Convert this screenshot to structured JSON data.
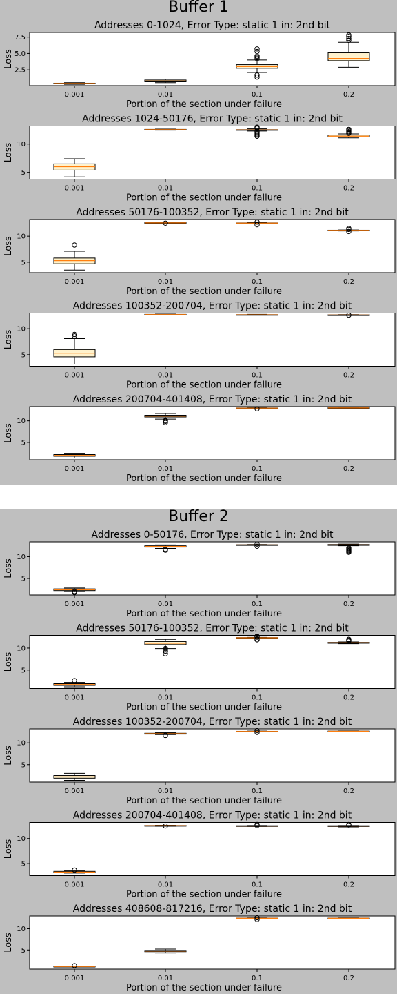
{
  "panels": [
    {
      "title": "Buffer 1",
      "charts": [
        {
          "type": "boxplot",
          "title": "Addresses 0-1024, Error Type: static 1 in: 2nd bit",
          "xlabel": "Portion of the section under failure",
          "ylabel": "Loss",
          "categories": [
            "0.001",
            "0.01",
            "0.1",
            "0.2"
          ],
          "ylim": [
            0.1,
            8.2
          ],
          "yticks": [
            2.5,
            5.0,
            7.5
          ],
          "ytick_labels": [
            "2.5",
            "5.0",
            "7.5"
          ],
          "boxes": [
            {
              "whislo": 0.3,
              "q1": 0.38,
              "med": 0.42,
              "q3": 0.47,
              "whishi": 0.55,
              "fliers": []
            },
            {
              "whislo": 0.55,
              "q1": 0.68,
              "med": 0.8,
              "q3": 0.95,
              "whishi": 1.1,
              "fliers": []
            },
            {
              "whislo": 2.1,
              "q1": 2.75,
              "med": 3.0,
              "q3": 3.3,
              "whishi": 4.0,
              "fliers": [
                1.4,
                1.7,
                4.2,
                4.4,
                4.6,
                5.3,
                5.7
              ]
            },
            {
              "whislo": 2.9,
              "q1": 3.9,
              "med": 4.25,
              "q3": 5.1,
              "whishi": 6.7,
              "fliers": [
                7.0,
                7.3,
                7.6,
                7.8
              ]
            }
          ]
        },
        {
          "type": "boxplot",
          "title": "Addresses 1024-50176, Error Type: static 1 in: 2nd bit",
          "xlabel": "Portion of the section under failure",
          "ylabel": "Loss",
          "categories": [
            "0.001",
            "0.01",
            "0.1",
            "0.2"
          ],
          "ylim": [
            3.8,
            13.2
          ],
          "yticks": [
            5,
            10
          ],
          "ytick_labels": [
            "5",
            "10"
          ],
          "boxes": [
            {
              "whislo": 4.2,
              "q1": 5.4,
              "med": 6.0,
              "q3": 6.5,
              "whishi": 7.4,
              "fliers": []
            },
            {
              "whislo": 12.45,
              "q1": 12.5,
              "med": 12.55,
              "q3": 12.6,
              "whishi": 12.65,
              "fliers": []
            },
            {
              "whislo": 12.3,
              "q1": 12.45,
              "med": 12.5,
              "q3": 12.55,
              "whishi": 12.7,
              "fliers": [
                11.4,
                11.6,
                11.8,
                12.0,
                12.2,
                12.8,
                12.9,
                13.0
              ]
            },
            {
              "whislo": 11.1,
              "q1": 11.25,
              "med": 11.4,
              "q3": 11.6,
              "whishi": 11.8,
              "fliers": [
                11.9,
                12.0,
                12.2,
                12.4,
                12.6
              ]
            }
          ]
        },
        {
          "type": "boxplot",
          "title": "Addresses 50176-100352, Error Type: static 1 in: 2nd bit",
          "xlabel": "Portion of the section under failure",
          "ylabel": "Loss",
          "categories": [
            "0.001",
            "0.01",
            "0.1",
            "0.2"
          ],
          "ylim": [
            3.0,
            13.2
          ],
          "yticks": [
            5,
            10
          ],
          "ytick_labels": [
            "5",
            "10"
          ],
          "boxes": [
            {
              "whislo": 3.5,
              "q1": 4.7,
              "med": 5.3,
              "q3": 5.8,
              "whishi": 7.1,
              "fliers": [
                8.3
              ]
            },
            {
              "whislo": 12.45,
              "q1": 12.5,
              "med": 12.55,
              "q3": 12.6,
              "whishi": 12.65,
              "fliers": [
                12.5
              ]
            },
            {
              "whislo": 12.4,
              "q1": 12.45,
              "med": 12.5,
              "q3": 12.55,
              "whishi": 12.6,
              "fliers": [
                12.2,
                12.7
              ]
            },
            {
              "whislo": 11.0,
              "q1": 11.05,
              "med": 11.1,
              "q3": 11.15,
              "whishi": 11.2,
              "fliers": [
                10.9,
                11.3,
                11.5
              ]
            }
          ]
        },
        {
          "type": "boxplot",
          "title": "Addresses 100352-200704, Error Type: static 1 in: 2nd bit",
          "xlabel": "Portion of the section under failure",
          "ylabel": "Loss",
          "categories": [
            "0.001",
            "0.01",
            "0.1",
            "0.2"
          ],
          "ylim": [
            2.8,
            13.0
          ],
          "yticks": [
            5,
            10
          ],
          "ytick_labels": [
            "5",
            "10"
          ],
          "boxes": [
            {
              "whislo": 3.2,
              "q1": 4.6,
              "med": 5.3,
              "q3": 6.0,
              "whishi": 8.1,
              "fliers": [
                8.6,
                8.9
              ]
            },
            {
              "whislo": 12.6,
              "q1": 12.65,
              "med": 12.7,
              "q3": 12.75,
              "whishi": 12.8,
              "fliers": []
            },
            {
              "whislo": 12.6,
              "q1": 12.63,
              "med": 12.66,
              "q3": 12.7,
              "whishi": 12.75,
              "fliers": []
            },
            {
              "whislo": 12.55,
              "q1": 12.6,
              "med": 12.63,
              "q3": 12.66,
              "whishi": 12.7,
              "fliers": [
                12.6
              ]
            }
          ]
        },
        {
          "type": "boxplot",
          "title": "Addresses 200704-401408, Error Type: static 1 in: 2nd bit",
          "xlabel": "Portion of the section under failure",
          "ylabel": "Loss",
          "categories": [
            "0.001",
            "0.01",
            "0.1",
            "0.2"
          ],
          "ylim": [
            1.0,
            13.3
          ],
          "yticks": [
            5,
            10
          ],
          "ytick_labels": [
            "5",
            "10"
          ],
          "boxes": [
            {
              "whislo": 1.4,
              "q1": 1.8,
              "med": 2.0,
              "q3": 2.2,
              "whishi": 2.5,
              "fliers": []
            },
            {
              "whislo": 10.4,
              "q1": 10.9,
              "med": 11.1,
              "q3": 11.3,
              "whishi": 11.7,
              "fliers": [
                9.6,
                9.9,
                10.1
              ]
            },
            {
              "whislo": 12.85,
              "q1": 12.9,
              "med": 12.95,
              "q3": 13.0,
              "whishi": 13.05,
              "fliers": [
                12.8
              ]
            },
            {
              "whislo": 12.9,
              "q1": 12.95,
              "med": 13.0,
              "q3": 13.05,
              "whishi": 13.1,
              "fliers": []
            }
          ]
        }
      ]
    },
    {
      "title": "Buffer 2",
      "charts": [
        {
          "type": "boxplot",
          "title": "Addresses 0-50176, Error Type: static 1 in: 2nd bit",
          "xlabel": "Portion of the section under failure",
          "ylabel": "Loss",
          "categories": [
            "0.001",
            "0.01",
            "0.1",
            "0.2"
          ],
          "ylim": [
            1.2,
            13.4
          ],
          "yticks": [
            5,
            10
          ],
          "ytick_labels": [
            "5",
            "10"
          ],
          "boxes": [
            {
              "whislo": 2.0,
              "q1": 2.2,
              "med": 2.4,
              "q3": 2.6,
              "whishi": 2.8,
              "fliers": [
                1.8,
                2.0
              ]
            },
            {
              "whislo": 11.9,
              "q1": 12.2,
              "med": 12.35,
              "q3": 12.5,
              "whishi": 12.7,
              "fliers": [
                11.5,
                11.7
              ]
            },
            {
              "whislo": 12.6,
              "q1": 12.65,
              "med": 12.7,
              "q3": 12.75,
              "whishi": 12.8,
              "fliers": [
                12.4,
                12.9
              ]
            },
            {
              "whislo": 12.5,
              "q1": 12.6,
              "med": 12.7,
              "q3": 12.8,
              "whishi": 12.9,
              "fliers": [
                11.0,
                11.2,
                11.4,
                11.6,
                11.8,
                12.0
              ]
            }
          ]
        },
        {
          "type": "boxplot",
          "title": "Addresses 50176-100352, Error Type: static 1 in: 2nd bit",
          "xlabel": "Portion of the section under failure",
          "ylabel": "Loss",
          "categories": [
            "0.001",
            "0.01",
            "0.1",
            "0.2"
          ],
          "ylim": [
            0.8,
            12.9
          ],
          "yticks": [
            5,
            10
          ],
          "ytick_labels": [
            "5",
            "10"
          ],
          "boxes": [
            {
              "whislo": 1.2,
              "q1": 1.5,
              "med": 1.7,
              "q3": 1.9,
              "whishi": 2.2,
              "fliers": [
                2.6
              ]
            },
            {
              "whislo": 9.9,
              "q1": 10.8,
              "med": 11.1,
              "q3": 11.5,
              "whishi": 12.0,
              "fliers": [
                8.7,
                9.3,
                9.6,
                9.9
              ]
            },
            {
              "whislo": 12.25,
              "q1": 12.3,
              "med": 12.35,
              "q3": 12.4,
              "whishi": 12.45,
              "fliers": [
                11.9,
                12.1,
                12.5,
                12.6,
                12.7
              ]
            },
            {
              "whislo": 11.0,
              "q1": 11.1,
              "med": 11.2,
              "q3": 11.3,
              "whishi": 11.4,
              "fliers": [
                11.6,
                11.8,
                12.0
              ]
            }
          ]
        },
        {
          "type": "boxplot",
          "title": "Addresses 100352-200704, Error Type: static 1 in: 2nd bit",
          "xlabel": "Portion of the section under failure",
          "ylabel": "Loss",
          "categories": [
            "0.001",
            "0.01",
            "0.1",
            "0.2"
          ],
          "ylim": [
            1.0,
            13.2
          ],
          "yticks": [
            5,
            10
          ],
          "ytick_labels": [
            "5",
            "10"
          ],
          "boxes": [
            {
              "whislo": 1.4,
              "q1": 1.9,
              "med": 2.2,
              "q3": 2.5,
              "whishi": 3.0,
              "fliers": []
            },
            {
              "whislo": 11.9,
              "q1": 12.0,
              "med": 12.1,
              "q3": 12.2,
              "whishi": 12.35,
              "fliers": [
                11.7
              ]
            },
            {
              "whislo": 12.5,
              "q1": 12.55,
              "med": 12.6,
              "q3": 12.65,
              "whishi": 12.7,
              "fliers": [
                12.4,
                12.8
              ]
            },
            {
              "whislo": 12.55,
              "q1": 12.6,
              "med": 12.65,
              "q3": 12.7,
              "whishi": 12.75,
              "fliers": []
            }
          ]
        },
        {
          "type": "boxplot",
          "title": "Addresses 200704-401408, Error Type: static 1 in: 2nd bit",
          "xlabel": "Portion of the section under failure",
          "ylabel": "Loss",
          "categories": [
            "0.001",
            "0.01",
            "0.1",
            "0.2"
          ],
          "ylim": [
            2.6,
            13.2
          ],
          "yticks": [
            5,
            10
          ],
          "ytick_labels": [
            "5",
            "10"
          ],
          "boxes": [
            {
              "whislo": 3.1,
              "q1": 3.2,
              "med": 3.3,
              "q3": 3.45,
              "whishi": 3.55,
              "fliers": [
                3.7
              ]
            },
            {
              "whislo": 12.45,
              "q1": 12.5,
              "med": 12.55,
              "q3": 12.6,
              "whishi": 12.65,
              "fliers": [
                12.5
              ]
            },
            {
              "whislo": 12.4,
              "q1": 12.45,
              "med": 12.5,
              "q3": 12.55,
              "whishi": 12.6,
              "fliers": [
                12.6,
                12.8
              ]
            },
            {
              "whislo": 12.3,
              "q1": 12.4,
              "med": 12.5,
              "q3": 12.55,
              "whishi": 12.6,
              "fliers": [
                12.7,
                12.8
              ]
            }
          ]
        },
        {
          "type": "boxplot",
          "title": "Addresses 408608-817216, Error Type: static 1 in: 2nd bit",
          "xlabel": "Portion of the section under failure",
          "ylabel": "Loss",
          "categories": [
            "0.001",
            "0.01",
            "0.1",
            "0.2"
          ],
          "ylim": [
            0.5,
            13.0
          ],
          "yticks": [
            5,
            10
          ],
          "ytick_labels": [
            "5",
            "10"
          ],
          "boxes": [
            {
              "whislo": 1.0,
              "q1": 1.05,
              "med": 1.1,
              "q3": 1.15,
              "whishi": 1.2,
              "fliers": [
                1.3
              ]
            },
            {
              "whislo": 4.3,
              "q1": 4.6,
              "med": 4.75,
              "q3": 4.9,
              "whishi": 5.2,
              "fliers": []
            },
            {
              "whislo": 12.35,
              "q1": 12.4,
              "med": 12.45,
              "q3": 12.5,
              "whishi": 12.55,
              "fliers": [
                12.2,
                12.6
              ]
            },
            {
              "whislo": 12.35,
              "q1": 12.4,
              "med": 12.45,
              "q3": 12.5,
              "whishi": 12.55,
              "fliers": []
            }
          ]
        }
      ]
    }
  ],
  "colors": {
    "background": "#bfbfbf",
    "axes": "#ffffff",
    "median": "#ff7f0e",
    "box": "#fff2cc"
  }
}
